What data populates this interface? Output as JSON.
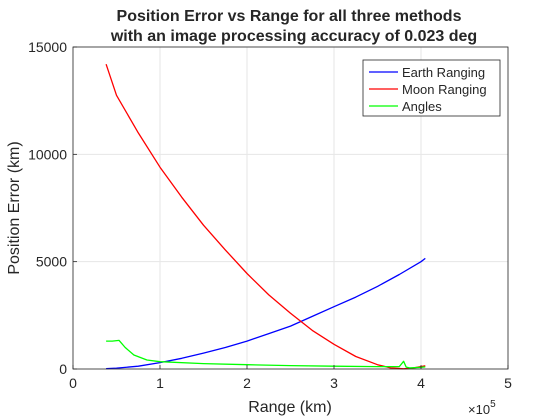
{
  "chart_data": {
    "type": "line",
    "title_lines": [
      "Position Error vs Range for all three methods",
      "with an image processing accuracy of 0.023 deg"
    ],
    "xlabel": "Range (km)",
    "ylabel": "Position Error (km)",
    "x_exponent_label": "×10",
    "x_exponent_power": "5",
    "xlim": [
      0,
      5
    ],
    "ylim": [
      0,
      15000
    ],
    "x_ticks": [
      0,
      1,
      2,
      3,
      4,
      5
    ],
    "x_tick_labels": [
      "0",
      "1",
      "2",
      "3",
      "4",
      "5"
    ],
    "y_ticks": [
      0,
      5000,
      10000,
      15000
    ],
    "y_tick_labels": [
      "0",
      "5000",
      "10000",
      "15000"
    ],
    "grid": true,
    "legend_position": "top-right",
    "series": [
      {
        "name": "Earth Ranging",
        "color": "#0000ff",
        "x": [
          0.38,
          0.5,
          0.75,
          1.0,
          1.25,
          1.5,
          1.75,
          2.0,
          2.25,
          2.5,
          2.75,
          3.0,
          3.25,
          3.5,
          3.75,
          4.0,
          4.05
        ],
        "y": [
          20,
          40,
          130,
          300,
          500,
          740,
          1000,
          1300,
          1650,
          2000,
          2450,
          2900,
          3350,
          3850,
          4400,
          5000,
          5150
        ]
      },
      {
        "name": "Moon Ranging",
        "color": "#ff0000",
        "x": [
          0.38,
          0.5,
          0.75,
          1.0,
          1.25,
          1.5,
          1.75,
          2.0,
          2.25,
          2.5,
          2.75,
          3.0,
          3.25,
          3.5,
          3.65,
          3.8,
          3.9,
          4.05
        ],
        "y": [
          14200,
          12750,
          11000,
          9400,
          8000,
          6700,
          5550,
          4450,
          3450,
          2600,
          1800,
          1150,
          580,
          200,
          50,
          10,
          40,
          150
        ]
      },
      {
        "name": "Angles",
        "color": "#00ff00",
        "x": [
          0.38,
          0.45,
          0.53,
          0.6,
          0.7,
          0.85,
          1.0,
          1.5,
          2.0,
          2.5,
          3.0,
          3.5,
          3.75,
          3.8,
          3.83,
          3.87,
          4.0,
          4.05
        ],
        "y": [
          1300,
          1300,
          1330,
          1000,
          650,
          420,
          340,
          250,
          200,
          160,
          130,
          110,
          110,
          360,
          90,
          50,
          80,
          100
        ]
      }
    ]
  }
}
